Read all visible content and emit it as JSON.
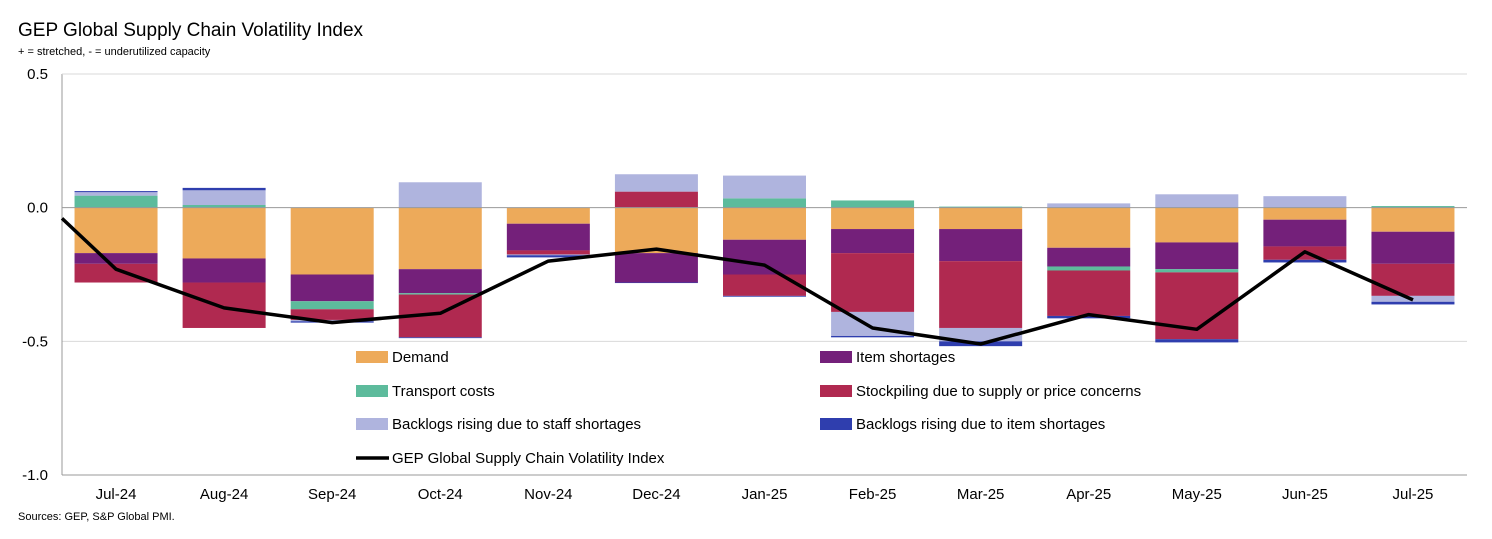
{
  "title": "GEP Global Supply Chain Volatility Index",
  "subtitle": "+ = stretched, - = underutilized capacity",
  "source": "Sources: GEP, S&P Global PMI.",
  "colors": {
    "demand": "#EDAA5A",
    "item_shortages": "#74207A",
    "transport_costs": "#5DBB9C",
    "stockpiling": "#B02950",
    "backlogs_staff": "#AFB4DE",
    "backlogs_item": "#2F3EAE",
    "index_line": "#000000",
    "axis": "#999999",
    "gridline": "#D9D9D9"
  },
  "chart_data": {
    "type": "bar",
    "stacked": true,
    "title": "GEP Global Supply Chain Volatility Index",
    "xlabel": "",
    "ylabel": "",
    "ylim": [
      -1.0,
      0.5
    ],
    "yticks": [
      "0.5",
      "0.0",
      "-0.5",
      "-1.0"
    ],
    "categories": [
      "Jul-24",
      "Aug-24",
      "Sep-24",
      "Oct-24",
      "Nov-24",
      "Dec-24",
      "Jan-25",
      "Feb-25",
      "Mar-25",
      "Apr-25",
      "May-25",
      "Jun-25",
      "Jul-25"
    ],
    "series": [
      {
        "key": "demand",
        "name": "Demand",
        "values": [
          -0.17,
          -0.19,
          -0.25,
          -0.23,
          -0.06,
          -0.17,
          -0.12,
          -0.08,
          -0.08,
          -0.15,
          -0.13,
          -0.045,
          -0.09
        ]
      },
      {
        "key": "item_shortages",
        "name": "Item shortages",
        "values": [
          -0.04,
          -0.09,
          -0.1,
          -0.09,
          -0.1,
          -0.11,
          -0.13,
          -0.09,
          -0.12,
          -0.07,
          -0.1,
          -0.1,
          -0.12
        ]
      },
      {
        "key": "transport_costs",
        "name": "Transport costs",
        "values": [
          0.045,
          0.01,
          -0.03,
          -0.005,
          0.0,
          0.0,
          0.035,
          0.027,
          0.004,
          -0.015,
          -0.012,
          0.0,
          0.006
        ]
      },
      {
        "key": "stockpiling",
        "name": "Stockpiling due to supply or price concerns",
        "values": [
          -0.07,
          -0.17,
          -0.04,
          -0.16,
          -0.015,
          0.06,
          -0.08,
          -0.22,
          -0.25,
          -0.17,
          -0.25,
          -0.05,
          -0.12
        ]
      },
      {
        "key": "backlogs_staff",
        "name": "Backlogs rising due to staff shortages",
        "values": [
          0.013,
          0.055,
          -0.005,
          0.095,
          -0.003,
          0.065,
          0.085,
          -0.09,
          -0.05,
          0.016,
          0.05,
          0.043,
          -0.022
        ]
      },
      {
        "key": "backlogs_item",
        "name": "Backlogs rising due to item shortages",
        "values": [
          0.004,
          0.009,
          -0.005,
          -0.003,
          -0.008,
          -0.002,
          -0.003,
          -0.005,
          -0.018,
          -0.009,
          -0.012,
          -0.01,
          -0.01
        ]
      }
    ],
    "line": {
      "name": "GEP Global Supply Chain Volatility Index",
      "start_value": -0.04,
      "values": [
        -0.23,
        -0.375,
        -0.43,
        -0.395,
        -0.2,
        -0.155,
        -0.215,
        -0.45,
        -0.51,
        -0.4,
        -0.455,
        -0.165,
        -0.345
      ]
    },
    "legend": [
      {
        "key": "demand",
        "label": "Demand",
        "kind": "bar"
      },
      {
        "key": "item_shortages",
        "label": "Item shortages",
        "kind": "bar"
      },
      {
        "key": "transport_costs",
        "label": "Transport costs",
        "kind": "bar"
      },
      {
        "key": "stockpiling",
        "label": "Stockpiling due to supply or price concerns",
        "kind": "bar"
      },
      {
        "key": "backlogs_staff",
        "label": "Backlogs rising due to staff shortages",
        "kind": "bar"
      },
      {
        "key": "backlogs_item",
        "label": "Backlogs rising due to item shortages",
        "kind": "bar"
      },
      {
        "key": "index_line",
        "label": "GEP Global Supply Chain Volatility Index",
        "kind": "line"
      }
    ]
  }
}
